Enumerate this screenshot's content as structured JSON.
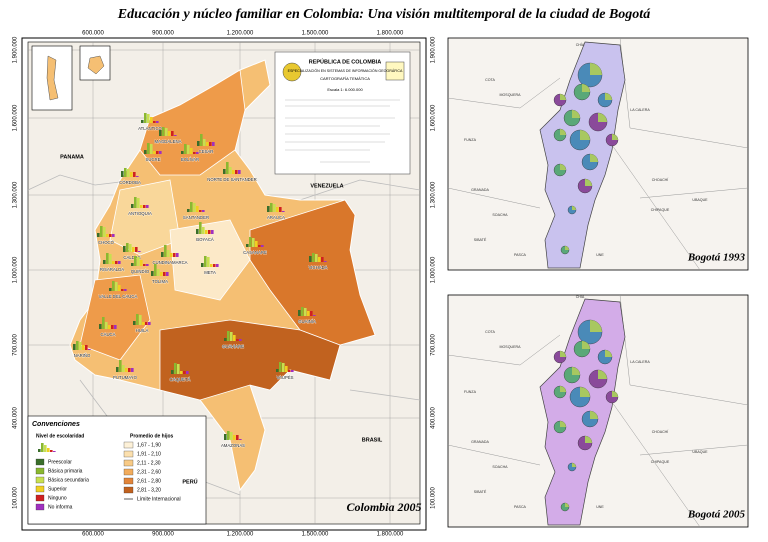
{
  "title": "Educación y núcleo familiar en Colombia: Una visión multitemporal de la ciudad de Bogotá",
  "colombia_map": {
    "label": "Colombia 2005",
    "x_coords": [
      "600.000",
      "900.000",
      "1.200.000",
      "1.500.000",
      "1.800.000"
    ],
    "y_coords": [
      "1.900.000",
      "1.600.000",
      "1.300.000",
      "1.000.000",
      "700.000",
      "400.000",
      "100.000"
    ],
    "countries": [
      "PANAMA",
      "VENEZUELA",
      "BRASIL",
      "PERÚ"
    ],
    "departments": [
      "ATLÁNTICO",
      "MAGDALENA",
      "CESAR",
      "SUCRE",
      "BOLÍVAR",
      "CÓRDOBA",
      "NORTE DE SANTANDER",
      "ANTIOQUIA",
      "SANTANDER",
      "ARAUCA",
      "BOYACÁ",
      "CHOCÓ",
      "CASANARE",
      "CALDAS",
      "CUNDINAMARCA",
      "RISARALDA",
      "QUINDÍO",
      "VICHADA",
      "TOLIMA",
      "META",
      "VALLE DEL CAUCA",
      "GUAINÍA",
      "CAUCA",
      "HUILA",
      "GUAVIARE",
      "NARIÑO",
      "PUTUMAYO",
      "CAQUETÁ",
      "VAUPÉS",
      "AMAZONAS"
    ]
  },
  "info_box": {
    "country": "REPÚBLICA DE COLOMBIA",
    "program": "ESPECIALIZACIÓN EN SISTEMAS DE INFORMACIÓN GEOGRÁFICA",
    "subject": "CARTOGRAFÍA TEMÁTICA",
    "scale": "Escala 1: 6.000.000"
  },
  "legend": {
    "title": "Convenciones",
    "education_title": "Nivel de escolaridad",
    "education": [
      "Preescolar",
      "Básica primaria",
      "Básica secundaria",
      "Superior",
      "Ninguno",
      "No informa"
    ],
    "children_title": "Promedio de hijos",
    "children": [
      "1,67 - 1,90",
      "1,91 - 2,10",
      "2,11 - 2,30",
      "2,31 - 2,60",
      "2,61 - 2,80",
      "2,81 - 3,20"
    ],
    "boundary": "Límite Internacional"
  },
  "bogota_1993": {
    "label": "Bogotá 1993",
    "places": [
      "CHÍA",
      "COTA",
      "FUNZA",
      "MOSQUERA",
      "LA CALERA",
      "SOACHA",
      "SIBATÉ",
      "CHOACHÍ",
      "UBAQUE",
      "CHIPAQUE",
      "GRANADA",
      "PASCA",
      "UNE"
    ]
  },
  "bogota_2005": {
    "label": "Bogotá 2005",
    "places": [
      "CHÍA",
      "COTA",
      "FUNZA",
      "MOSQUERA",
      "LA CALERA",
      "SOACHA",
      "SIBATÉ",
      "CHOACHÍ",
      "UBAQUE",
      "CHIPAQUE",
      "GRANADA",
      "PASCA",
      "UNE"
    ]
  }
}
